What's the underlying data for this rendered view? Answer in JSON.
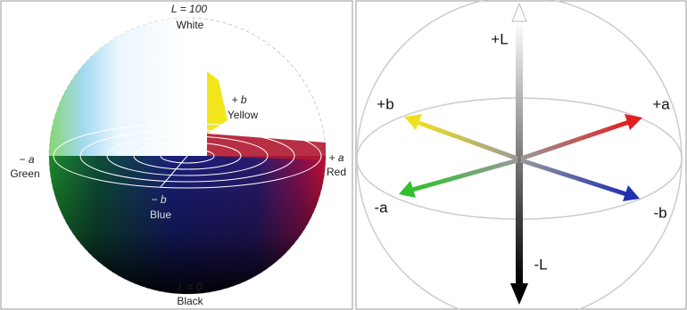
{
  "left_panel": {
    "top_value": "L = 100",
    "top_name": "White",
    "plus_b": "+ b",
    "plus_b_name": "Yellow",
    "minus_a": "− a",
    "minus_a_name": "Green",
    "plus_a": "+ a",
    "plus_a_name": "Red",
    "minus_b": "− b",
    "minus_b_name": "Blue",
    "bottom_value": "L = 0",
    "bottom_name": "Black"
  },
  "right_panel": {
    "plus_l": "+L",
    "plus_b": "+b",
    "plus_a": "+a",
    "minus_a": "-a",
    "minus_b": "-b",
    "minus_l": "-L"
  }
}
